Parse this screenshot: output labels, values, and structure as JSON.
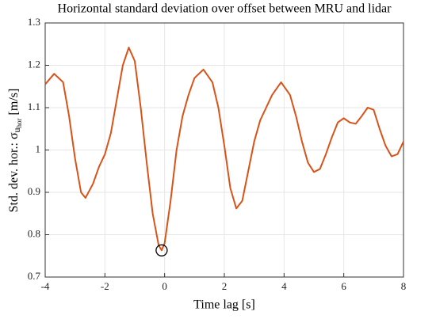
{
  "chart_data": {
    "type": "line",
    "title": "Horizontal standard deviation over offset between MRU and lidar",
    "xlabel": "Time lag [s]",
    "ylabel": {
      "text": "Std. dev. hor.: σ",
      "subscript": "u",
      "subsubscript": "hor",
      "unit": "[m/s]"
    },
    "xlim": [
      -4,
      8
    ],
    "ylim": [
      0.7,
      1.3
    ],
    "xticks": [
      -4,
      -2,
      0,
      2,
      4,
      6,
      8
    ],
    "yticks": [
      0.7,
      0.8,
      0.9,
      1,
      1.1,
      1.2,
      1.3
    ],
    "grid": true,
    "series": [
      {
        "name": "Std. dev. hor.",
        "color": "#d95319",
        "x": [
          -4,
          -3.7,
          -3.4,
          -3.2,
          -3.0,
          -2.8,
          -2.65,
          -2.4,
          -2.2,
          -2.0,
          -1.8,
          -1.6,
          -1.4,
          -1.2,
          -1.0,
          -0.8,
          -0.6,
          -0.4,
          -0.2,
          -0.1,
          0.0,
          0.2,
          0.4,
          0.6,
          0.8,
          1.0,
          1.3,
          1.6,
          1.8,
          2.0,
          2.2,
          2.4,
          2.6,
          2.8,
          3.0,
          3.2,
          3.4,
          3.6,
          3.9,
          4.2,
          4.4,
          4.6,
          4.8,
          5.0,
          5.2,
          5.4,
          5.6,
          5.8,
          6.0,
          6.2,
          6.4,
          6.6,
          6.8,
          7.0,
          7.2,
          7.4,
          7.6,
          7.8,
          8.0
        ],
        "values": [
          1.155,
          1.18,
          1.16,
          1.08,
          0.98,
          0.9,
          0.887,
          0.92,
          0.96,
          0.99,
          1.04,
          1.12,
          1.2,
          1.242,
          1.21,
          1.1,
          0.97,
          0.85,
          0.775,
          0.763,
          0.78,
          0.88,
          1.0,
          1.08,
          1.13,
          1.17,
          1.19,
          1.16,
          1.1,
          1.01,
          0.91,
          0.862,
          0.88,
          0.95,
          1.02,
          1.07,
          1.1,
          1.13,
          1.16,
          1.13,
          1.08,
          1.02,
          0.97,
          0.948,
          0.955,
          0.99,
          1.03,
          1.065,
          1.075,
          1.065,
          1.062,
          1.08,
          1.1,
          1.095,
          1.05,
          1.01,
          0.985,
          0.99,
          1.02
        ]
      }
    ],
    "marker": {
      "x": -0.1,
      "y": 0.763,
      "color": "#000000"
    }
  }
}
